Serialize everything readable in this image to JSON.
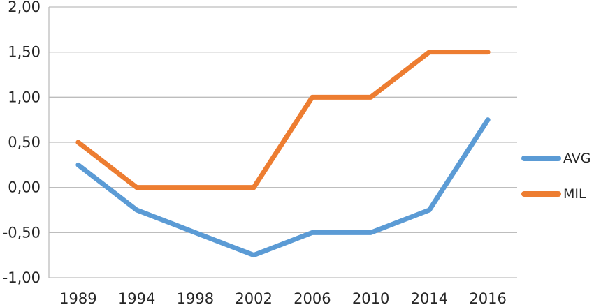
{
  "chart_data": {
    "type": "line",
    "title": "",
    "xlabel": "",
    "ylabel": "",
    "categories": [
      "1989",
      "1994",
      "1998",
      "2002",
      "2006",
      "2010",
      "2014",
      "2016"
    ],
    "series": [
      {
        "name": "AVG",
        "color": "#5B9BD5",
        "values": [
          0.25,
          -0.25,
          -0.5,
          -0.75,
          -0.5,
          -0.5,
          -0.25,
          0.75
        ]
      },
      {
        "name": "MIL",
        "color": "#ED7D31",
        "values": [
          0.5,
          0.0,
          0.0,
          0.0,
          1.0,
          1.0,
          1.5,
          1.5
        ]
      }
    ],
    "ylim": [
      -1.0,
      2.0
    ],
    "y_tick_labels": [
      "2,00",
      "1,50",
      "1,00",
      "0,50",
      "0,00",
      "-0,50",
      "-1,00"
    ],
    "decimal_separator": ",",
    "grid": true,
    "legend_position": "right",
    "colors": {
      "gridline": "#BDBDBD",
      "axis_line": "#BDBDBD",
      "tick_text": "#262626"
    }
  }
}
